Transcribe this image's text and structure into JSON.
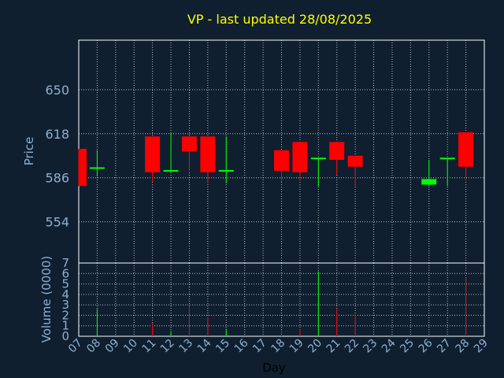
{
  "chart_data": {
    "type": "candlestick",
    "title": "VP - last updated 28/08/2025",
    "xlabel": "Day",
    "ylabel": "Price",
    "volume_label": "Volume (0000)",
    "x_ticks": [
      "07",
      "08",
      "09",
      "10",
      "11",
      "12",
      "13",
      "14",
      "15",
      "16",
      "17",
      "18",
      "19",
      "20",
      "21",
      "22",
      "23",
      "24",
      "25",
      "26",
      "27",
      "28",
      "29"
    ],
    "price_ticks": [
      554,
      586,
      618,
      650
    ],
    "price_range": [
      524,
      686
    ],
    "volume_ticks": [
      0,
      1,
      2,
      3,
      4,
      5,
      6,
      7
    ],
    "volume_range": [
      0,
      7
    ],
    "grid": true,
    "colors": {
      "background": "#0f1f30",
      "up": "#00ff00",
      "down": "#ff0000",
      "grid": "#ffffff",
      "title": "#ffff00",
      "text": "#8fb0cf"
    },
    "candles": [
      {
        "day": "07",
        "open": 607,
        "close": 580,
        "high": 607,
        "low": 580,
        "volume": 0
      },
      {
        "day": "08",
        "open": 592,
        "close": 593,
        "high": 606,
        "low": 587,
        "volume": 2.6
      },
      {
        "day": "11",
        "open": 616,
        "close": 590,
        "high": 616,
        "low": 583,
        "volume": 1.3
      },
      {
        "day": "12",
        "open": 590,
        "close": 591,
        "high": 619,
        "low": 590,
        "volume": 0.5
      },
      {
        "day": "13",
        "open": 616,
        "close": 605,
        "high": 616,
        "low": 591,
        "volume": 2.9
      },
      {
        "day": "14",
        "open": 616,
        "close": 590,
        "high": 616,
        "low": 582,
        "volume": 1.8
      },
      {
        "day": "15",
        "open": 590,
        "close": 591,
        "high": 616,
        "low": 582,
        "volume": 0.7
      },
      {
        "day": "18",
        "open": 606,
        "close": 591,
        "high": 606,
        "low": 583,
        "volume": 0.5
      },
      {
        "day": "19",
        "open": 612,
        "close": 590,
        "high": 612,
        "low": 584,
        "volume": 0.7
      },
      {
        "day": "20",
        "open": 599,
        "close": 600,
        "high": 600,
        "low": 579,
        "volume": 6.2
      },
      {
        "day": "21",
        "open": 612,
        "close": 599,
        "high": 612,
        "low": 588,
        "volume": 2.6
      },
      {
        "day": "22",
        "open": 602,
        "close": 594,
        "high": 602,
        "low": 580,
        "volume": 2.1
      },
      {
        "day": "26",
        "open": 581,
        "close": 585,
        "high": 599,
        "low": 580,
        "volume": 0
      },
      {
        "day": "27",
        "open": 599,
        "close": 600,
        "high": 600,
        "low": 580,
        "volume": 0
      },
      {
        "day": "28",
        "open": 619,
        "close": 594,
        "high": 619,
        "low": 584,
        "volume": 5.6
      }
    ]
  }
}
